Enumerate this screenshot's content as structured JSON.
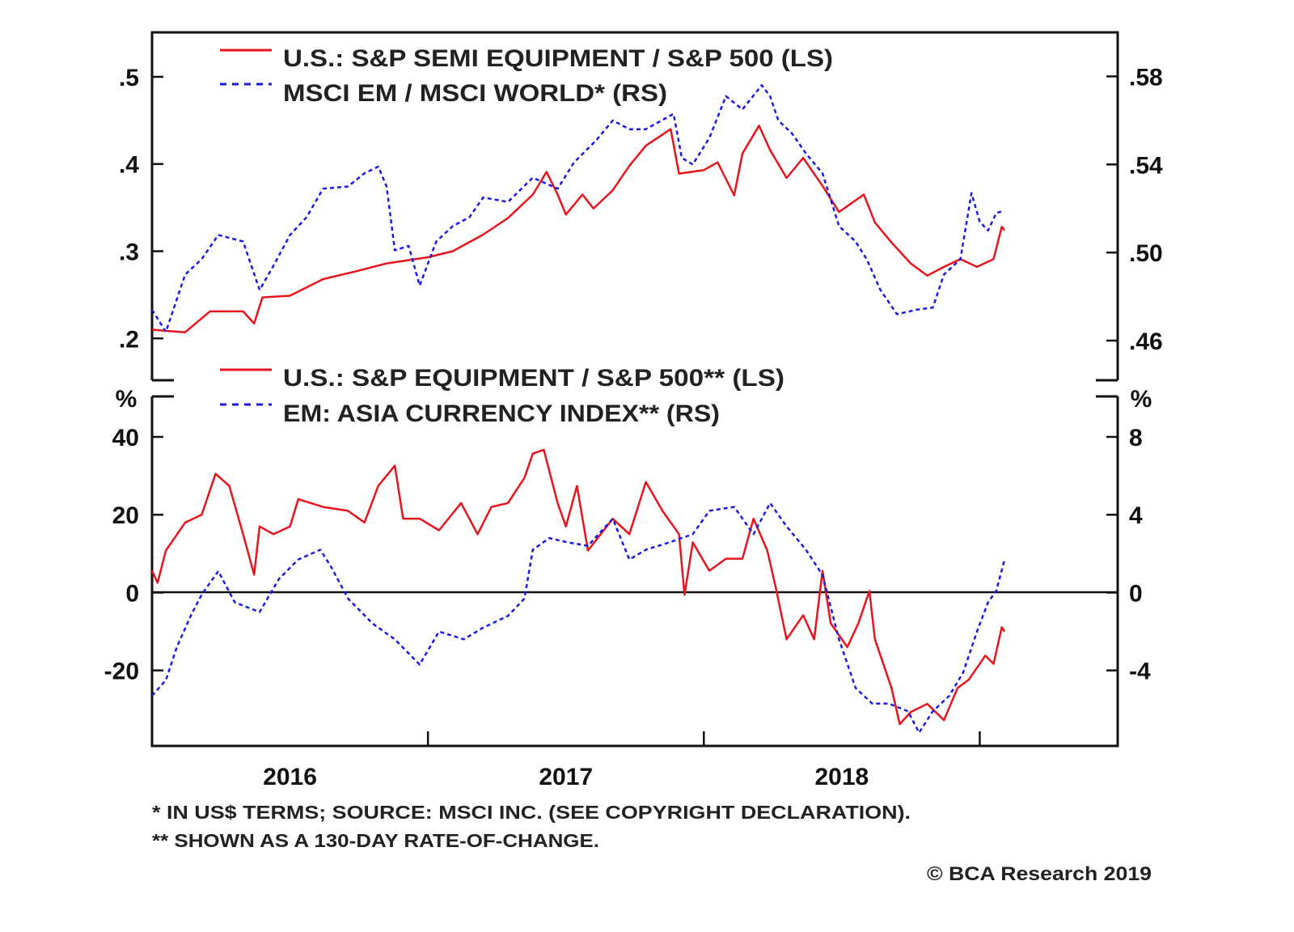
{
  "chart_data": [
    {
      "type": "line",
      "panel": "top",
      "xlim": [
        2016.0,
        2019.5
      ],
      "ylim_left": [
        0.152,
        0.551
      ],
      "ylim_right": [
        0.442,
        0.6
      ],
      "left_ticks": [
        0.2,
        0.3,
        0.4,
        0.5
      ],
      "left_tick_labels": [
        ".2",
        ".3",
        ".4",
        ".5"
      ],
      "right_ticks": [
        0.46,
        0.5,
        0.54,
        0.58
      ],
      "right_tick_labels": [
        ".46",
        ".50",
        ".54",
        ".58"
      ],
      "legend_placement": "top-left",
      "series": [
        {
          "name": "U.S.: S&P SEMI EQUIPMENT / S&P 500 (LS)",
          "axis": "left",
          "color": "#e8141c",
          "style": "solid",
          "x": [
            2016.0,
            2016.12,
            2016.21,
            2016.33,
            2016.37,
            2016.4,
            2016.5,
            2016.62,
            2016.74,
            2016.85,
            2017.0,
            2017.09,
            2017.2,
            2017.29,
            2017.38,
            2017.43,
            2017.47,
            2017.5,
            2017.56,
            2017.6,
            2017.67,
            2017.73,
            2017.79,
            2017.88,
            2017.91,
            2018.0,
            2018.05,
            2018.11,
            2018.14,
            2018.2,
            2018.24,
            2018.3,
            2018.36,
            2018.43,
            2018.49,
            2018.58,
            2018.62,
            2018.68,
            2018.75,
            2018.81,
            2018.87,
            2018.93,
            2018.99,
            2019.05,
            2019.08,
            2019.09
          ],
          "y": [
            0.21,
            0.207,
            0.231,
            0.231,
            0.217,
            0.247,
            0.249,
            0.268,
            0.277,
            0.286,
            0.293,
            0.3,
            0.319,
            0.338,
            0.365,
            0.391,
            0.365,
            0.342,
            0.365,
            0.349,
            0.37,
            0.398,
            0.421,
            0.44,
            0.389,
            0.393,
            0.402,
            0.364,
            0.412,
            0.444,
            0.416,
            0.384,
            0.407,
            0.375,
            0.345,
            0.365,
            0.333,
            0.31,
            0.286,
            0.272,
            0.282,
            0.291,
            0.282,
            0.291,
            0.328,
            0.324
          ]
        },
        {
          "name": "MSCI EM / MSCI WORLD* (RS)",
          "axis": "right",
          "color": "#1a1ae0",
          "style": "dashed",
          "x": [
            2016.0,
            2016.05,
            2016.12,
            2016.18,
            2016.24,
            2016.33,
            2016.39,
            2016.44,
            2016.5,
            2016.56,
            2016.62,
            2016.71,
            2016.77,
            2016.82,
            2016.85,
            2016.88,
            2016.93,
            2016.97,
            2017.03,
            2017.09,
            2017.15,
            2017.2,
            2017.29,
            2017.38,
            2017.47,
            2017.53,
            2017.61,
            2017.67,
            2017.73,
            2017.79,
            2017.89,
            2017.92,
            2017.96,
            2018.02,
            2018.08,
            2018.14,
            2018.21,
            2018.24,
            2018.27,
            2018.32,
            2018.37,
            2018.43,
            2018.49,
            2018.55,
            2018.59,
            2018.64,
            2018.7,
            2018.77,
            2018.83,
            2018.87,
            2018.93,
            2018.97,
            2019.0,
            2019.03,
            2019.06,
            2019.09
          ],
          "y": [
            0.474,
            0.464,
            0.49,
            0.497,
            0.508,
            0.505,
            0.483,
            0.494,
            0.508,
            0.516,
            0.529,
            0.53,
            0.536,
            0.539,
            0.53,
            0.501,
            0.503,
            0.485,
            0.505,
            0.512,
            0.516,
            0.525,
            0.523,
            0.534,
            0.529,
            0.541,
            0.551,
            0.56,
            0.556,
            0.556,
            0.563,
            0.543,
            0.54,
            0.552,
            0.571,
            0.565,
            0.576,
            0.571,
            0.56,
            0.554,
            0.545,
            0.536,
            0.512,
            0.505,
            0.497,
            0.483,
            0.472,
            0.474,
            0.475,
            0.49,
            0.497,
            0.527,
            0.514,
            0.51,
            0.518,
            0.519
          ]
        }
      ]
    },
    {
      "type": "line",
      "panel": "bottom",
      "xlim": [
        2016.0,
        2019.5
      ],
      "ylim_left": [
        -39.4,
        50.4
      ],
      "ylim_right": [
        -7.88,
        10.08
      ],
      "left_unit": "%",
      "right_unit": "%",
      "left_ticks": [
        -20,
        0,
        20,
        40
      ],
      "left_tick_labels": [
        "-20",
        "0",
        "20",
        "40"
      ],
      "right_ticks": [
        -4,
        0,
        4,
        8
      ],
      "right_tick_labels": [
        "-4",
        "0",
        "4",
        "8"
      ],
      "zero_line": true,
      "legend_placement": "top-left",
      "series": [
        {
          "name": "U.S.: S&P EQUIPMENT / S&P 500** (LS)",
          "axis": "left",
          "color": "#e8141c",
          "style": "solid",
          "x": [
            2016.0,
            2016.02,
            2016.05,
            2016.12,
            2016.18,
            2016.23,
            2016.28,
            2016.33,
            2016.37,
            2016.39,
            2016.44,
            2016.5,
            2016.53,
            2016.62,
            2016.71,
            2016.77,
            2016.82,
            2016.88,
            2016.91,
            2016.97,
            2017.04,
            2017.12,
            2017.18,
            2017.23,
            2017.29,
            2017.35,
            2017.38,
            2017.42,
            2017.47,
            2017.5,
            2017.54,
            2017.58,
            2017.67,
            2017.73,
            2017.79,
            2017.85,
            2017.91,
            2017.93,
            2017.96,
            2018.02,
            2018.08,
            2018.14,
            2018.18,
            2018.23,
            2018.26,
            2018.3,
            2018.36,
            2018.4,
            2018.43,
            2018.46,
            2018.52,
            2018.56,
            2018.6,
            2018.62,
            2018.68,
            2018.71,
            2018.75,
            2018.81,
            2018.87,
            2018.92,
            2018.96,
            2019.02,
            2019.05,
            2019.08,
            2019.09
          ],
          "y": [
            5.6,
            2.5,
            10.8,
            18,
            20,
            30.5,
            27.4,
            15,
            4.6,
            17,
            15,
            17,
            24,
            22,
            21,
            18,
            27.4,
            32.6,
            19,
            19,
            16,
            23,
            15,
            22,
            23,
            29.5,
            35.7,
            36.7,
            23,
            17,
            27.4,
            10.8,
            19,
            15,
            28.4,
            21,
            15,
            -0.6,
            12.9,
            5.6,
            8.7,
            8.7,
            19,
            10.8,
            1.5,
            -12,
            -5.8,
            -12,
            5.6,
            -7.9,
            -14,
            -7.9,
            0.4,
            -12,
            -24.5,
            -33.8,
            -30.7,
            -28.6,
            -32.8,
            -24.5,
            -22.4,
            -16.2,
            -18.3,
            -8.9,
            -10
          ]
        },
        {
          "name": "EM: ASIA CURRENCY INDEX** (RS)",
          "axis": "right",
          "color": "#1a1ae0",
          "style": "dashed",
          "x": [
            2016.0,
            2016.05,
            2016.09,
            2016.14,
            2016.18,
            2016.24,
            2016.3,
            2016.39,
            2016.46,
            2016.53,
            2016.61,
            2016.65,
            2016.71,
            2016.8,
            2016.88,
            2016.97,
            2017.04,
            2017.13,
            2017.2,
            2017.29,
            2017.35,
            2017.38,
            2017.44,
            2017.5,
            2017.58,
            2017.67,
            2017.73,
            2017.79,
            2017.88,
            2017.96,
            2018.02,
            2018.11,
            2018.18,
            2018.24,
            2018.3,
            2018.37,
            2018.43,
            2018.49,
            2018.55,
            2018.61,
            2018.67,
            2018.74,
            2018.78,
            2018.83,
            2018.89,
            2018.94,
            2018.99,
            2019.03,
            2019.06,
            2019.09
          ],
          "y": [
            -5.3,
            -4.5,
            -2.8,
            -1.2,
            -0.1,
            1.1,
            -0.5,
            -1.0,
            0.7,
            1.7,
            2.2,
            1.3,
            -0.3,
            -1.6,
            -2.4,
            -3.7,
            -2.0,
            -2.4,
            -1.8,
            -1.2,
            -0.3,
            2.2,
            2.8,
            2.6,
            2.4,
            3.8,
            1.7,
            2.2,
            2.6,
            3.0,
            4.2,
            4.4,
            3.0,
            4.6,
            3.4,
            2.2,
            0.9,
            -2.4,
            -4.9,
            -5.7,
            -5.7,
            -6.1,
            -7.2,
            -6.1,
            -5.3,
            -4.1,
            -2.0,
            -0.5,
            0.1,
            1.7
          ]
        }
      ]
    }
  ],
  "x_axis": {
    "year_labels": [
      "2016",
      "2017",
      "2018"
    ],
    "year_label_positions": [
      2016.5,
      2017.5,
      2018.5
    ],
    "tick_years": [
      2017,
      2018,
      2019
    ]
  },
  "footnotes": [
    "*  IN US$ TERMS; SOURCE: MSCI INC. (SEE COPYRIGHT DECLARATION).",
    "** SHOWN AS A 130-DAY RATE-OF-CHANGE."
  ],
  "copyright": "© BCA Research 2019"
}
